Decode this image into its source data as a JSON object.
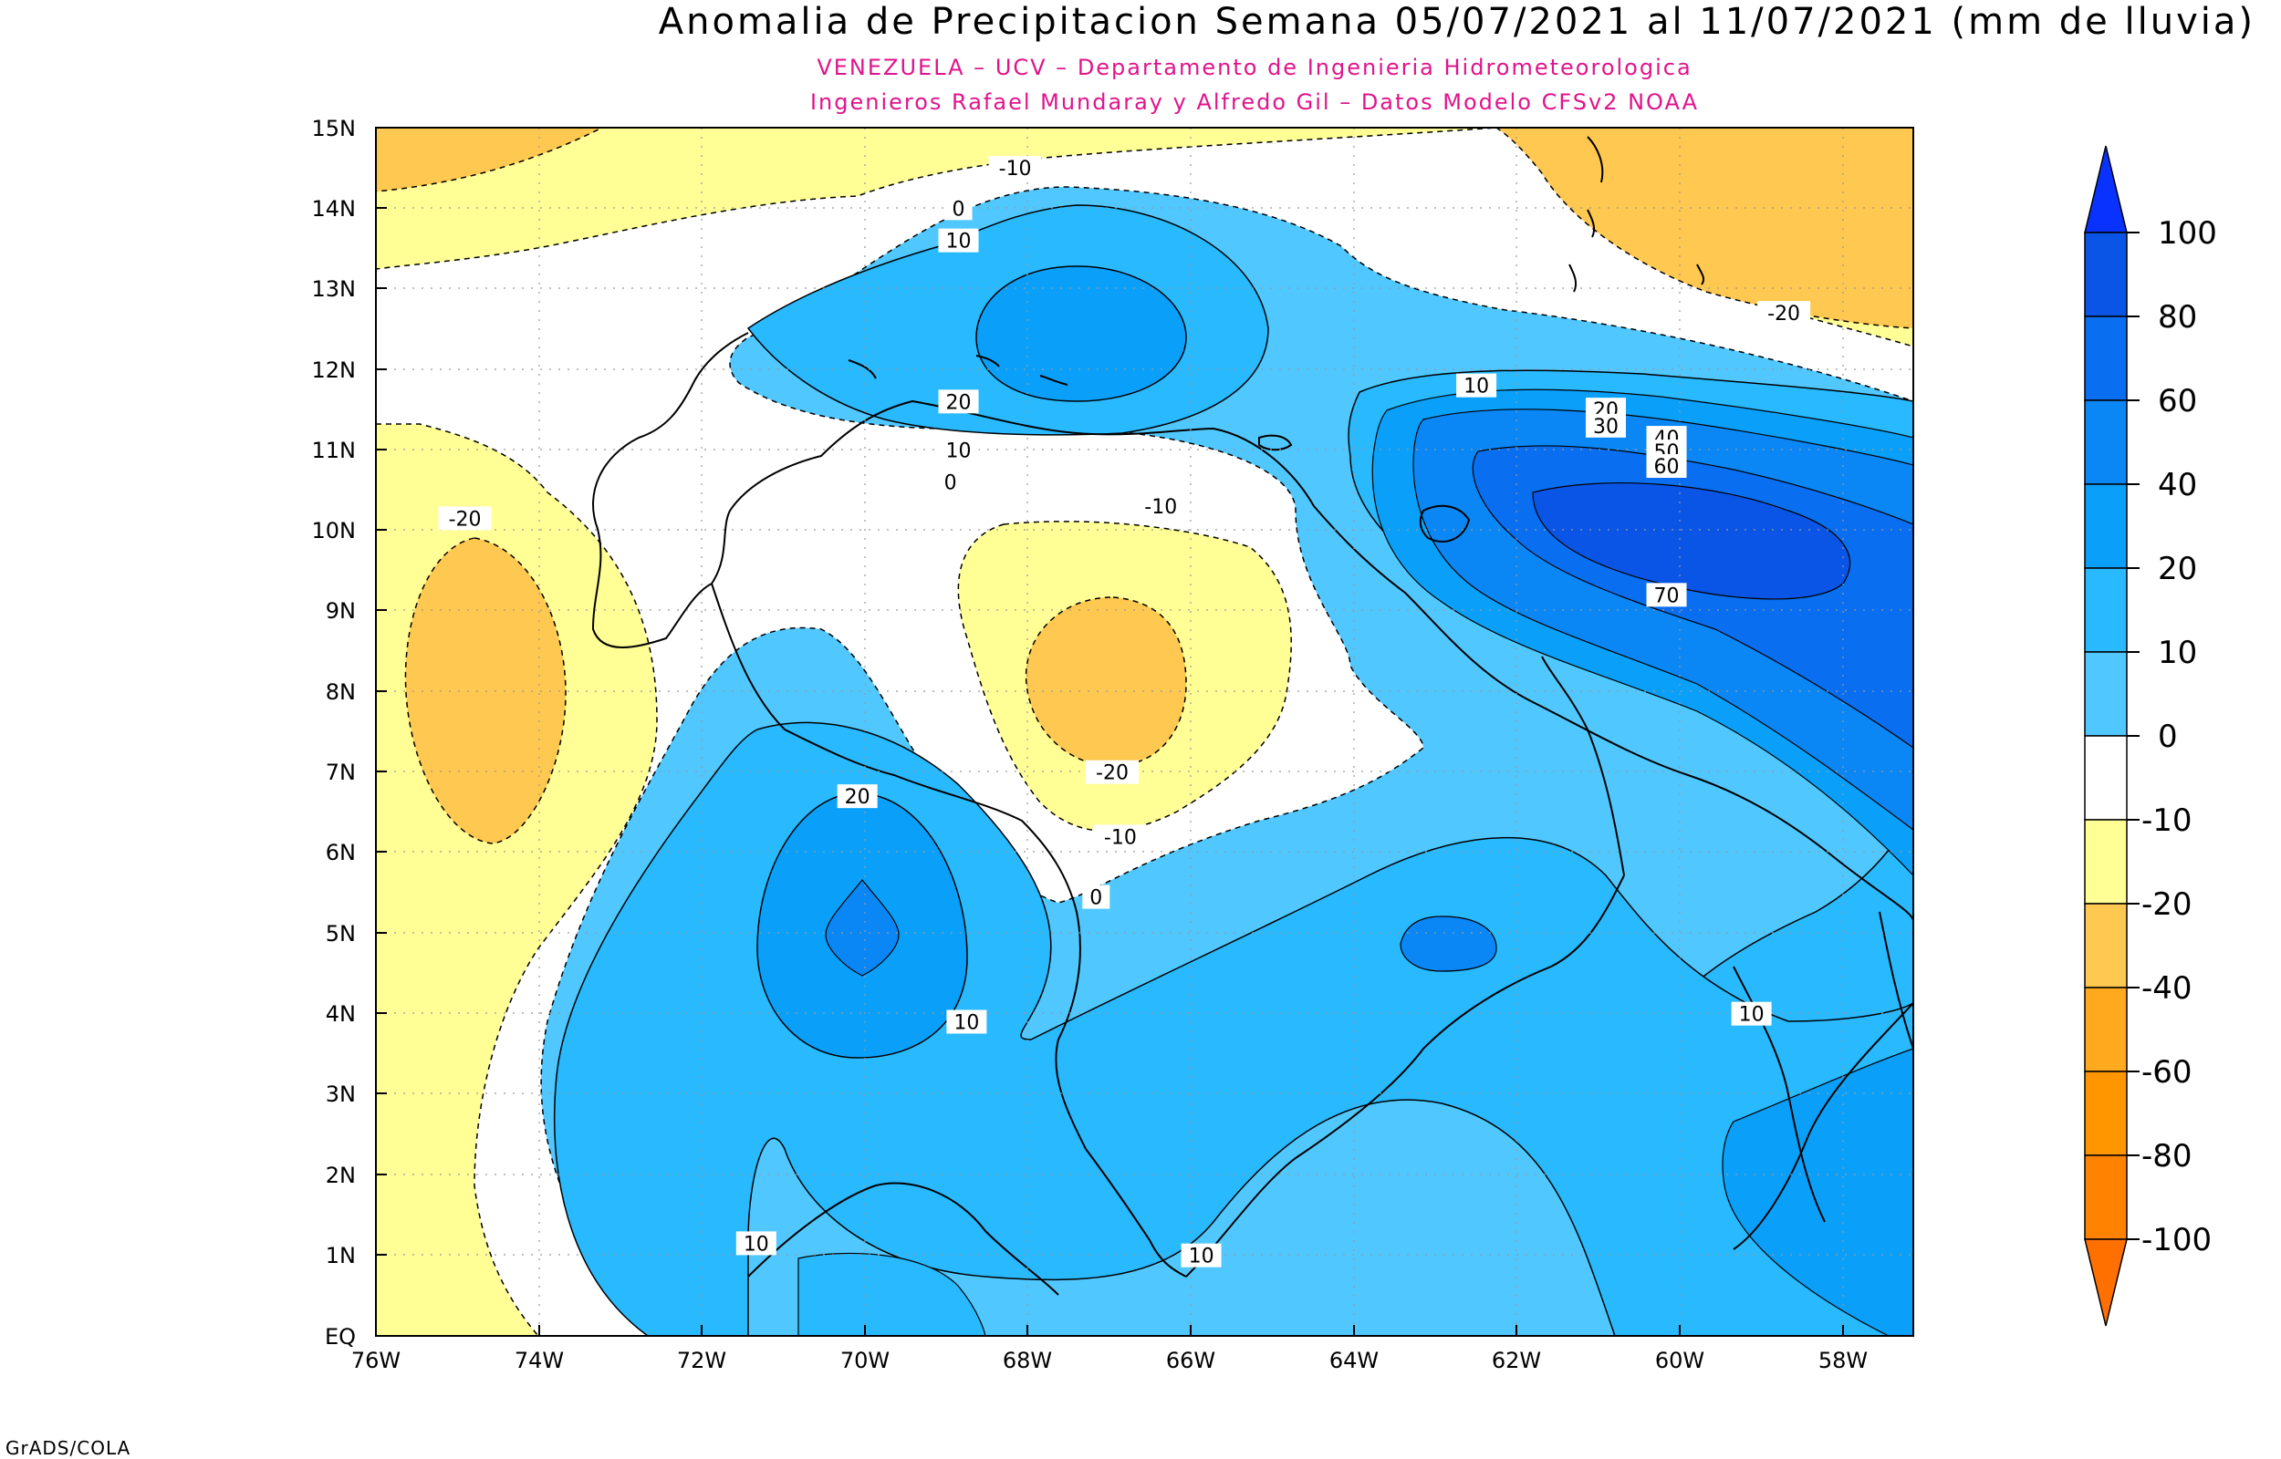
{
  "title": "Anomalia de Precipitacion Semana 05/07/2021 al 11/07/2021 (mm de lluvia)",
  "subtitle_line1": "VENEZUELA – UCV – Departamento de Ingenieria Hidrometeorologica",
  "subtitle_line2": "Ingenieros Rafael Mundaray y Alfredo Gil – Datos Modelo CFSv2 NOAA",
  "footer": "GrADS/COLA",
  "map": {
    "lat_ticks": [
      "15N",
      "14N",
      "13N",
      "12N",
      "11N",
      "10N",
      "9N",
      "8N",
      "7N",
      "6N",
      "5N",
      "4N",
      "3N",
      "2N",
      "1N",
      "EQ"
    ],
    "lon_ticks": [
      "76W",
      "74W",
      "72W",
      "70W",
      "68W",
      "66W",
      "64W",
      "62W",
      "60W",
      "58W"
    ],
    "contour_labels": [
      {
        "text": "-10",
        "lon": -68.1,
        "lat": 14.5
      },
      {
        "text": "0",
        "lon": -68.8,
        "lat": 14.0
      },
      {
        "text": "10",
        "lon": -68.8,
        "lat": 13.6
      },
      {
        "text": "20",
        "lon": -68.8,
        "lat": 11.6
      },
      {
        "text": "10",
        "lon": -68.8,
        "lat": 11.0
      },
      {
        "text": "0",
        "lon": -68.9,
        "lat": 10.6
      },
      {
        "text": "-10",
        "lon": -66.3,
        "lat": 10.3
      },
      {
        "text": "-20",
        "lon": -74.9,
        "lat": 10.15
      },
      {
        "text": "-20",
        "lon": -58.6,
        "lat": 12.7
      },
      {
        "text": "10",
        "lon": -62.4,
        "lat": 11.8
      },
      {
        "text": "20",
        "lon": -60.8,
        "lat": 11.5
      },
      {
        "text": "30",
        "lon": -60.8,
        "lat": 11.3
      },
      {
        "text": "40",
        "lon": -60.05,
        "lat": 11.15
      },
      {
        "text": "50",
        "lon": -60.05,
        "lat": 10.98
      },
      {
        "text": "60",
        "lon": -60.05,
        "lat": 10.8
      },
      {
        "text": "70",
        "lon": -60.05,
        "lat": 9.2
      },
      {
        "text": "-20",
        "lon": -66.9,
        "lat": 7.0
      },
      {
        "text": "-10",
        "lon": -66.8,
        "lat": 6.2
      },
      {
        "text": "0",
        "lon": -67.1,
        "lat": 5.45
      },
      {
        "text": "20",
        "lon": -70.05,
        "lat": 6.7
      },
      {
        "text": "10",
        "lon": -68.7,
        "lat": 3.9
      },
      {
        "text": "10",
        "lon": -71.3,
        "lat": 1.15
      },
      {
        "text": "10",
        "lon": -65.8,
        "lat": 1.0
      },
      {
        "text": "10",
        "lon": -59.0,
        "lat": 4.0
      }
    ],
    "colorbar": {
      "labels": [
        "100",
        "80",
        "60",
        "40",
        "20",
        "10",
        "0",
        "-10",
        "-20",
        "-40",
        "-60",
        "-80",
        "-100"
      ],
      "colors": [
        "#0a32ff",
        "#0a55e6",
        "#0a6ef0",
        "#0a87f5",
        "#0aa0fa",
        "#28b9ff",
        "#50c8ff",
        "#ffffff",
        "#ffff96",
        "#ffc850",
        "#ffaa1e",
        "#ff9600",
        "#ff8200",
        "#ff7000"
      ]
    }
  }
}
